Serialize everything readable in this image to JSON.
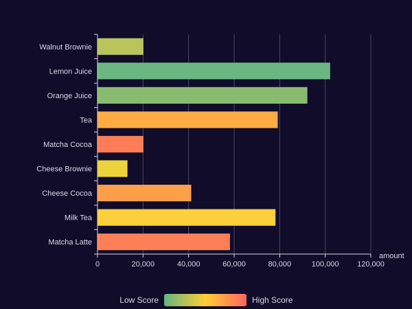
{
  "chart_data": {
    "type": "bar",
    "orientation": "horizontal",
    "title": "",
    "xlabel": "amount",
    "ylabel": "",
    "xlim": [
      0,
      120000
    ],
    "x_ticks": [
      0,
      20000,
      40000,
      60000,
      80000,
      100000,
      120000
    ],
    "x_tick_labels": [
      "0",
      "20,000",
      "40,000",
      "60,000",
      "80,000",
      "100,000",
      "120,000"
    ],
    "grid": "vertical",
    "categories": [
      "Walnut Brownie",
      "Lemon Juice",
      "Orange Juice",
      "Tea",
      "Matcha Cocoa",
      "Cheese Brownie",
      "Cheese Cocoa",
      "Milk Tea",
      "Matcha Latte"
    ],
    "values": [
      20000,
      102000,
      92000,
      79000,
      20000,
      13000,
      41000,
      78000,
      58000
    ],
    "scores": [
      0.38,
      0.05,
      0.15,
      0.72,
      0.95,
      0.55,
      0.82,
      0.5,
      0.92
    ],
    "bar_colors": [
      "#b9c55a",
      "#6bb784",
      "#88bb70",
      "#fdab42",
      "#fd7d57",
      "#ecd33c",
      "#fd9f49",
      "#fdcf3a",
      "#fd7f57"
    ],
    "visual_map": {
      "low_label": "Low Score",
      "high_label": "High Score",
      "colors": [
        "#65b581",
        "#ffce34",
        "#fd665f"
      ],
      "placement": "bottom-center"
    }
  }
}
